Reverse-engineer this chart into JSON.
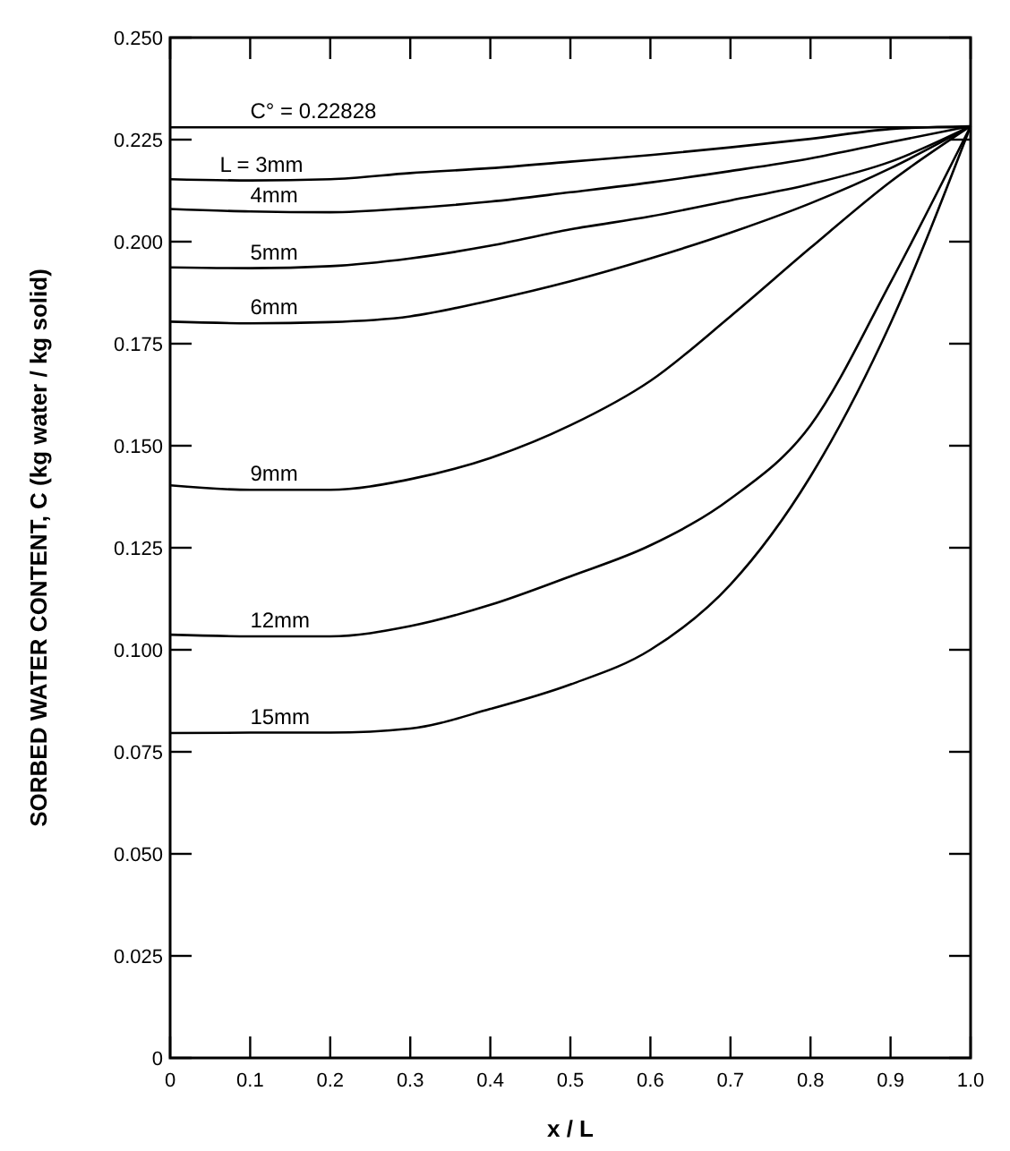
{
  "chart_data": {
    "type": "line",
    "xlabel": "x / L",
    "ylabel": "SORBED WATER CONTENT, C (kg water / kg solid)",
    "x": [
      0,
      0.1,
      0.2,
      0.3,
      0.4,
      0.5,
      0.6,
      0.7,
      0.8,
      0.9,
      1.0
    ],
    "xlim": [
      0,
      1.0
    ],
    "xticks": [
      0,
      0.1,
      0.2,
      0.3,
      0.4,
      0.5,
      0.6,
      0.7,
      0.8,
      0.9,
      {
        "value": 1.0,
        "label": "1.0"
      }
    ],
    "ylim": [
      0,
      0.25
    ],
    "yticks": [
      0,
      0.025,
      {
        "value": 0.05,
        "label": "0.050"
      },
      0.075,
      {
        "value": 0.1,
        "label": "0.100"
      },
      0.125,
      {
        "value": 0.15,
        "label": "0.150"
      },
      0.175,
      {
        "value": 0.2,
        "label": "0.200"
      },
      0.225,
      {
        "value": 0.25,
        "label": "0.250"
      }
    ],
    "grid": false,
    "marker": "none",
    "line_style": "solid",
    "series": [
      {
        "name": "C° = 0.22828",
        "color": "#000000",
        "values": [
          0.228,
          0.228,
          0.228,
          0.228,
          0.228,
          0.228,
          0.228,
          0.228,
          0.228,
          0.228,
          0.228
        ]
      },
      {
        "name": "L = 3mm",
        "color": "#000000",
        "values": [
          0.2153,
          0.215,
          0.2153,
          0.2168,
          0.218,
          0.2196,
          0.2212,
          0.2231,
          0.2252,
          0.2276,
          0.2283
        ]
      },
      {
        "name": "4mm",
        "color": "#000000",
        "values": [
          0.208,
          0.2074,
          0.2072,
          0.2082,
          0.2098,
          0.2121,
          0.2145,
          0.2173,
          0.2204,
          0.2244,
          0.2283
        ]
      },
      {
        "name": "5mm",
        "color": "#000000",
        "values": [
          0.1937,
          0.1935,
          0.194,
          0.1959,
          0.199,
          0.203,
          0.2062,
          0.2101,
          0.2141,
          0.2196,
          0.2283
        ]
      },
      {
        "name": "6mm",
        "color": "#000000",
        "values": [
          0.1804,
          0.18,
          0.1803,
          0.1817,
          0.1856,
          0.1903,
          0.1959,
          0.2022,
          0.2094,
          0.218,
          0.2283
        ]
      },
      {
        "name": "9mm",
        "color": "#000000",
        "values": [
          0.1403,
          0.1392,
          0.1392,
          0.1418,
          0.147,
          0.155,
          0.1659,
          0.1817,
          0.1985,
          0.2147,
          0.2283
        ]
      },
      {
        "name": "12mm",
        "color": "#000000",
        "values": [
          0.1037,
          0.1033,
          0.1033,
          0.1058,
          0.111,
          0.118,
          0.1256,
          0.137,
          0.155,
          0.19,
          0.2283
        ]
      },
      {
        "name": "15mm",
        "color": "#000000",
        "values": [
          0.0796,
          0.0797,
          0.0797,
          0.0807,
          0.0855,
          0.0915,
          0.1,
          0.116,
          0.1425,
          0.18,
          0.2283
        ]
      }
    ]
  }
}
